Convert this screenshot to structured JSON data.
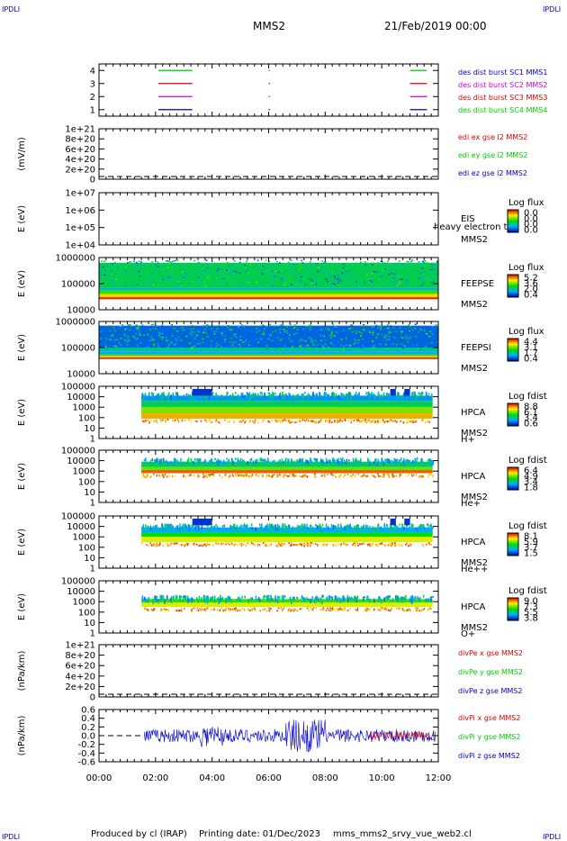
{
  "header": {
    "corner_tl": "IPDLI",
    "corner_tr": "IPDLI",
    "corner_bl": "IPDLI",
    "corner_br": "IPDLI",
    "mission": "MMS2",
    "date": "21/Feb/2019 00:00"
  },
  "footer": {
    "produced_by": "Produced by cl (IRAP)",
    "printing_date": "Printing date: 01/Dec/2023",
    "script": "mms_mms2_srvy_vue_web2.cl"
  },
  "colors": {
    "black": "#000000",
    "red": "#dd0000",
    "green": "#00cc00",
    "blue": "#0000cc",
    "magenta": "#cc00cc"
  },
  "chart_data": [
    {
      "type": "line",
      "panel": "burst-intervals",
      "yticks": [
        "4",
        "3",
        "2",
        "1"
      ],
      "ylim": [
        0.5,
        4.5
      ],
      "labels": [
        {
          "text": "des dist burst SC1 MMS1",
          "color": "#0000cc"
        },
        {
          "text": "des dist burst SC2 MMS2",
          "color": "#cc00cc"
        },
        {
          "text": "des dist burst SC3 MMS3",
          "color": "#dd0000"
        },
        {
          "text": "des dist burst SC4 MMS4",
          "color": "#00cc00"
        }
      ],
      "series": [
        {
          "level": 4,
          "color": "#00cc00",
          "intervals": [
            [
              2.1,
              3.3
            ],
            [
              6.0,
              6.05
            ],
            [
              11.0,
              11.6
            ]
          ]
        },
        {
          "level": 3,
          "color": "#dd0000",
          "intervals": [
            [
              2.1,
              3.3
            ],
            [
              6.0,
              6.05
            ],
            [
              11.0,
              11.6
            ]
          ]
        },
        {
          "level": 2,
          "color": "#cc00cc",
          "intervals": [
            [
              2.1,
              3.3
            ],
            [
              6.0,
              6.05
            ],
            [
              11.0,
              11.6
            ]
          ]
        },
        {
          "level": 1,
          "color": "#0000cc",
          "intervals": [
            [
              2.1,
              3.3
            ],
            [
              6.0,
              6.05
            ],
            [
              11.0,
              11.6
            ]
          ]
        }
      ]
    },
    {
      "type": "line",
      "panel": "edi-electric-field",
      "ylabel": "(mV/m)",
      "yticks": [
        "1e+21",
        "8e+20",
        "6e+20",
        "4e+20",
        "2e+20",
        "0"
      ],
      "labels": [
        {
          "text": "edi ex gse l2 MMS2",
          "color": "#dd0000"
        },
        {
          "text": "edi ey gse l2 MMS2",
          "color": "#00cc00"
        },
        {
          "text": "edi ez gse l2 MMS2",
          "color": "#0000cc"
        }
      ]
    },
    {
      "type": "heatmap",
      "panel": "eis",
      "ylabel": "E (eV)",
      "yticks": [
        "1e+07",
        "1e+06",
        "1e+05",
        "1e+04"
      ],
      "right_labels": [
        "EIS",
        "MMS2"
      ],
      "overlay_text": "heavy electron to",
      "colorbar_title": "Log flux",
      "colorbar_ticks": [
        "0.0",
        "0.0",
        "0.0",
        "0.0"
      ]
    },
    {
      "type": "heatmap",
      "panel": "feeps-electrons",
      "ylabel": "E (eV)",
      "yticks": [
        "1000000",
        "100000",
        "10000"
      ],
      "right_labels": [
        "FEEPSE",
        "MMS2"
      ],
      "colorbar_title": "Log flux",
      "colorbar_ticks": [
        "5.2",
        "3.6",
        "2.0",
        "0.4"
      ]
    },
    {
      "type": "heatmap",
      "panel": "feeps-ions",
      "ylabel": "E (eV)",
      "yticks": [
        "1000000",
        "100000",
        "10000"
      ],
      "right_labels": [
        "FEEPSI",
        "MMS2"
      ],
      "colorbar_title": "Log flux",
      "colorbar_ticks": [
        "4.4",
        "3.1",
        "1.7",
        "0.4"
      ]
    },
    {
      "type": "heatmap",
      "panel": "hpca-h",
      "ylabel": "E (eV)",
      "yticks": [
        "100000",
        "10000",
        "1000",
        "100",
        "10",
        "1"
      ],
      "right_labels": [
        "HPCA",
        "MMS2",
        "H+"
      ],
      "colorbar_title": "Log fdist",
      "colorbar_ticks": [
        "8.8",
        "6.1",
        "3.4",
        "0.6"
      ]
    },
    {
      "type": "heatmap",
      "panel": "hpca-he",
      "ylabel": "E (eV)",
      "yticks": [
        "100000",
        "10000",
        "1000",
        "100",
        "10",
        "1"
      ],
      "right_labels": [
        "HPCA",
        "MMS2",
        "He+"
      ],
      "colorbar_title": "Log fdist",
      "colorbar_ticks": [
        "6.4",
        "4.9",
        "3.4",
        "1.8"
      ]
    },
    {
      "type": "heatmap",
      "panel": "hpca-he2",
      "ylabel": "E (eV)",
      "yticks": [
        "100000",
        "10000",
        "1000",
        "100",
        "10",
        "1"
      ],
      "right_labels": [
        "HPCA",
        "MMS2",
        "He++"
      ],
      "colorbar_title": "Log fdist",
      "colorbar_ticks": [
        "8.1",
        "5.9",
        "3.7",
        "1.5"
      ]
    },
    {
      "type": "heatmap",
      "panel": "hpca-o",
      "ylabel": "E (eV)",
      "yticks": [
        "100000",
        "10000",
        "1000",
        "100",
        "10",
        "1"
      ],
      "right_labels": [
        "HPCA",
        "MMS2",
        "O+"
      ],
      "colorbar_title": "Log fdist",
      "colorbar_ticks": [
        "9.0",
        "7.3",
        "5.5",
        "3.8"
      ]
    },
    {
      "type": "line",
      "panel": "divpe",
      "ylabel": "(nPa/km)",
      "yticks": [
        "1e+21",
        "8e+20",
        "6e+20",
        "4e+20",
        "2e+20",
        "0"
      ],
      "labels": [
        {
          "text": "divPe x gse MMS2",
          "color": "#dd0000"
        },
        {
          "text": "divPe y gse MMS2",
          "color": "#00cc00"
        },
        {
          "text": "divPe z gse MMS2",
          "color": "#0000cc"
        }
      ]
    },
    {
      "type": "line",
      "panel": "divpi",
      "ylabel": "(nPa/km)",
      "yticks": [
        "0.6",
        "0.4",
        "0.2",
        "0.0",
        "-0.2",
        "-0.4",
        "-0.6"
      ],
      "ylim": [
        -0.7,
        0.7
      ],
      "xticks": [
        "00:00",
        "02:00",
        "04:00",
        "06:00",
        "08:00",
        "10:00",
        "12:00"
      ],
      "xlim": [
        0,
        12
      ],
      "labels": [
        {
          "text": "divPi x gse MMS2",
          "color": "#dd0000"
        },
        {
          "text": "divPi y gse MMS2",
          "color": "#00cc00"
        },
        {
          "text": "divPi z gse MMS2",
          "color": "#0000cc"
        }
      ]
    }
  ]
}
